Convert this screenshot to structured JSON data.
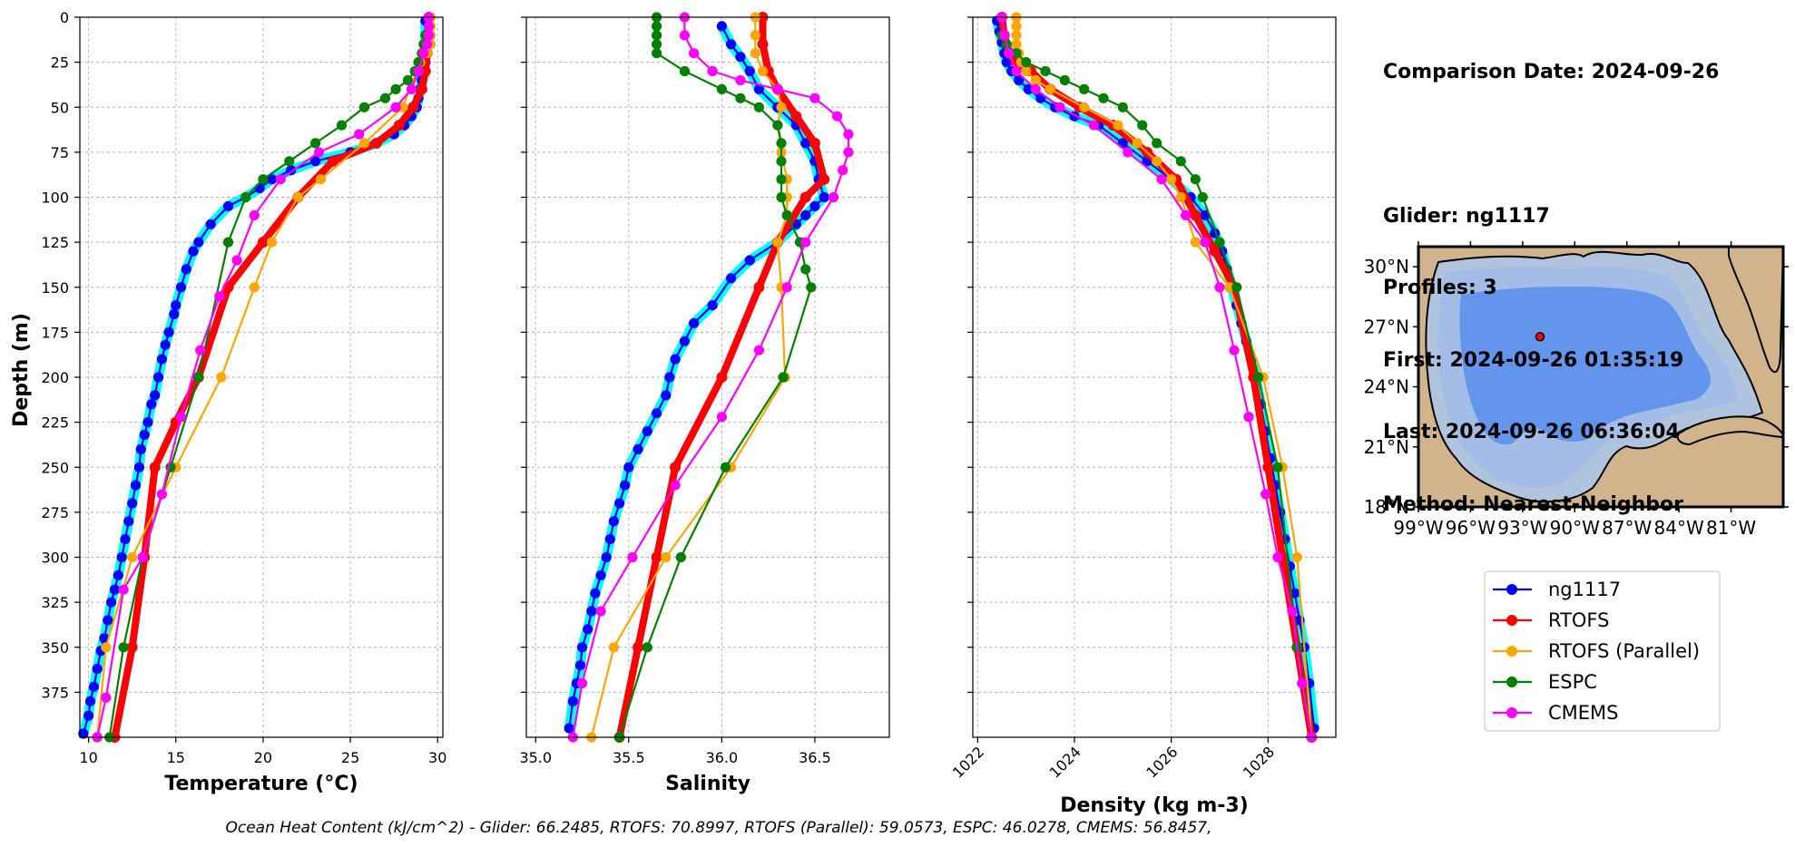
{
  "info": {
    "comparison": "Comparison Date: 2024-09-26",
    "glider": "Glider: ng1117",
    "profiles": "Profiles: 3",
    "first": "First: 2024-09-26 01:35:19",
    "last": "Last: 2024-09-26 06:36:04",
    "method": "Method: Nearest-Neighbor"
  },
  "footer": "Ocean Heat Content (kJ/cm^2) - Glider: 66.2485,  RTOFS: 70.8997,  RTOFS (Parallel): 59.0573,  ESPC: 46.0278,  CMEMS: 56.8457,",
  "legend": [
    "ng1117",
    "RTOFS",
    "RTOFS (Parallel)",
    "ESPC",
    "CMEMS"
  ],
  "colors": {
    "ng1117": "#0000ff",
    "glider_halo": "#00ffff",
    "RTOFS": "#ff0000",
    "RTOFS (Parallel)": "#ffa500",
    "ESPC": "#008000",
    "CMEMS": "#ff00ff",
    "land": "#d2b48c",
    "shelf": "#b0c4de",
    "slope": "#a3bde6",
    "deep": "#6495ed"
  },
  "chart_data": [
    {
      "type": "line",
      "xlabel": "Temperature (°C)",
      "ylabel": "Depth (m)",
      "xlim": [
        9.5,
        30.3
      ],
      "ylim": [
        400,
        0
      ],
      "grid": true,
      "xticks": [
        10,
        15,
        20,
        25,
        30
      ],
      "yticks": [
        0,
        25,
        50,
        75,
        100,
        125,
        150,
        175,
        200,
        225,
        250,
        275,
        300,
        325,
        350,
        375
      ],
      "series": [
        {
          "name": "ng1117",
          "x": [
            29.3,
            29.3,
            29.3,
            29.3,
            29.2,
            29.1,
            29.0,
            28.9,
            28.8,
            28.5,
            28.1,
            27.5,
            26.5,
            25.0,
            23.0,
            21.6,
            20.5,
            19.8,
            19.0,
            18.0,
            17.0,
            16.3,
            16.0,
            15.6,
            15.3,
            15.0,
            14.9,
            14.6,
            14.4,
            14.2,
            14.0,
            13.8,
            13.6,
            13.4,
            13.2,
            13.0,
            12.9,
            12.7,
            12.5,
            12.3,
            12.1,
            11.9,
            11.7,
            11.5,
            11.3,
            11.1,
            10.9,
            10.7,
            10.5,
            10.3,
            10.1,
            10.0,
            9.7
          ],
          "y": [
            2,
            10,
            18,
            25,
            30,
            35,
            40,
            45,
            50,
            55,
            60,
            65,
            70,
            75,
            80,
            85,
            90,
            95,
            100,
            105,
            115,
            125,
            130,
            140,
            150,
            160,
            165,
            175,
            182,
            190,
            200,
            210,
            215,
            225,
            232,
            240,
            250,
            260,
            270,
            280,
            290,
            300,
            310,
            318,
            325,
            335,
            345,
            352,
            362,
            372,
            380,
            388,
            398
          ]
        },
        {
          "name": "RTOFS",
          "x": [
            29.5,
            29.5,
            29.4,
            29.3,
            29.1,
            28.6,
            27.8,
            26.5,
            24.0,
            22.0,
            20.0,
            18.0,
            16.3,
            15.0,
            13.8,
            13.2,
            12.5,
            11.5
          ],
          "y": [
            0,
            10,
            20,
            30,
            40,
            50,
            60,
            70,
            80,
            100,
            125,
            150,
            200,
            225,
            250,
            300,
            350,
            400
          ]
        },
        {
          "name": "RTOFS (Parallel)",
          "x": [
            29.6,
            29.6,
            29.6,
            29.6,
            29.4,
            29.0,
            28.0,
            25.8,
            23.3,
            22.0,
            20.5,
            19.5,
            17.6,
            15.0,
            12.5,
            11.0,
            10.5
          ],
          "y": [
            0,
            5,
            10,
            15,
            20,
            25,
            50,
            70,
            90,
            100,
            125,
            150,
            200,
            250,
            300,
            350,
            400
          ]
        },
        {
          "name": "ESPC",
          "x": [
            29.3,
            29.2,
            29.1,
            28.9,
            28.7,
            28.3,
            27.6,
            27.0,
            25.8,
            24.5,
            23.0,
            21.5,
            20.0,
            19.0,
            18.0,
            16.3,
            14.7,
            13.1,
            12.0,
            11.2
          ],
          "y": [
            10,
            15,
            20,
            25,
            30,
            35,
            40,
            45,
            50,
            60,
            70,
            80,
            90,
            100,
            125,
            200,
            250,
            300,
            350,
            400
          ]
        },
        {
          "name": "CMEMS",
          "x": [
            29.5,
            29.5,
            29.5,
            29.4,
            29.2,
            28.9,
            28.5,
            27.6,
            25.5,
            23.2,
            21.0,
            19.5,
            18.5,
            17.5,
            16.4,
            15.3,
            14.2,
            13.1,
            12.0,
            11.0,
            10.5
          ],
          "y": [
            0,
            5,
            10,
            15,
            20,
            30,
            40,
            50,
            65,
            75,
            90,
            110,
            135,
            155,
            185,
            222,
            265,
            300,
            318,
            378,
            400
          ]
        }
      ]
    },
    {
      "type": "line",
      "xlabel": "Salinity",
      "ylabel": "",
      "xlim": [
        34.95,
        36.9
      ],
      "ylim": [
        400,
        0
      ],
      "grid": true,
      "xticks": [
        35.0,
        35.5,
        36.0,
        36.5
      ],
      "series": [
        {
          "name": "ng1117",
          "x": [
            36.0,
            36.05,
            36.1,
            36.15,
            36.2,
            36.3,
            36.4,
            36.45,
            36.5,
            36.52,
            36.55,
            36.5,
            36.45,
            36.4,
            36.3,
            36.15,
            36.05,
            35.95,
            35.85,
            35.8,
            35.75,
            35.72,
            35.7,
            35.65,
            35.6,
            35.55,
            35.5,
            35.48,
            35.45,
            35.42,
            35.4,
            35.38,
            35.35,
            35.32,
            35.3,
            35.28,
            35.25,
            35.24,
            35.22,
            35.2,
            35.18
          ],
          "y": [
            5,
            15,
            22,
            30,
            40,
            50,
            60,
            70,
            80,
            90,
            100,
            105,
            110,
            115,
            125,
            135,
            145,
            160,
            170,
            180,
            190,
            200,
            210,
            220,
            230,
            240,
            250,
            260,
            270,
            280,
            290,
            300,
            310,
            320,
            330,
            340,
            350,
            360,
            370,
            380,
            395
          ]
        },
        {
          "name": "RTOFS",
          "x": [
            36.22,
            36.22,
            36.25,
            36.3,
            36.4,
            36.5,
            36.55,
            36.45,
            36.3,
            36.2,
            36.0,
            35.75,
            35.65,
            35.55,
            35.45
          ],
          "y": [
            0,
            15,
            30,
            40,
            55,
            70,
            90,
            100,
            125,
            150,
            200,
            250,
            300,
            350,
            400
          ]
        },
        {
          "name": "RTOFS (Parallel)",
          "x": [
            36.18,
            36.18,
            36.18,
            36.22,
            36.3,
            36.32,
            36.3,
            36.32,
            36.35,
            36.35,
            36.35,
            36.3,
            36.32,
            36.34,
            36.05,
            35.7,
            35.42,
            35.3
          ],
          "y": [
            0,
            10,
            20,
            30,
            40,
            50,
            60,
            75,
            90,
            100,
            110,
            125,
            150,
            200,
            250,
            300,
            350,
            400
          ]
        },
        {
          "name": "ESPC",
          "x": [
            35.65,
            35.65,
            35.65,
            35.65,
            35.65,
            35.8,
            36.0,
            36.1,
            36.2,
            36.3,
            36.32,
            36.32,
            36.32,
            36.32,
            36.35,
            36.42,
            36.45,
            36.48,
            36.33,
            36.02,
            35.78,
            35.6,
            35.45
          ],
          "y": [
            0,
            5,
            10,
            15,
            20,
            30,
            40,
            45,
            50,
            60,
            70,
            80,
            90,
            100,
            110,
            125,
            140,
            150,
            200,
            250,
            300,
            350,
            400
          ]
        },
        {
          "name": "CMEMS",
          "x": [
            35.8,
            35.8,
            35.85,
            35.95,
            36.1,
            36.3,
            36.5,
            36.62,
            36.68,
            36.68,
            36.65,
            36.6,
            36.45,
            36.35,
            36.2,
            36.0,
            35.75,
            35.52,
            35.35,
            35.25,
            35.2
          ],
          "y": [
            0,
            10,
            20,
            30,
            35,
            40,
            45,
            55,
            65,
            75,
            85,
            100,
            125,
            150,
            185,
            222,
            260,
            300,
            330,
            370,
            400
          ]
        }
      ]
    },
    {
      "type": "line",
      "xlabel": "Density (kg m-3)",
      "ylabel": "",
      "xlim": [
        1021.9,
        1029.4
      ],
      "ylim": [
        400,
        0
      ],
      "grid": true,
      "xticks": [
        1022,
        1024,
        1026,
        1028
      ],
      "series": [
        {
          "name": "ng1117",
          "x": [
            1022.4,
            1022.45,
            1022.5,
            1022.55,
            1022.6,
            1022.7,
            1022.85,
            1023.05,
            1023.3,
            1023.6,
            1024.0,
            1024.5,
            1025.0,
            1025.5,
            1026.0,
            1026.4,
            1026.7,
            1026.9,
            1027.05,
            1027.15,
            1027.25,
            1027.35,
            1027.45,
            1027.55,
            1027.65,
            1027.75,
            1027.85,
            1027.95,
            1028.05,
            1028.15,
            1028.25,
            1028.35,
            1028.45,
            1028.55,
            1028.65,
            1028.75,
            1028.85,
            1028.95
          ],
          "y": [
            2,
            8,
            14,
            20,
            25,
            30,
            35,
            40,
            45,
            50,
            55,
            60,
            70,
            80,
            90,
            100,
            110,
            120,
            130,
            140,
            150,
            160,
            170,
            180,
            190,
            200,
            215,
            230,
            245,
            260,
            275,
            290,
            305,
            320,
            335,
            350,
            370,
            395
          ]
        },
        {
          "name": "RTOFS",
          "x": [
            1022.5,
            1022.55,
            1022.65,
            1022.8,
            1023.1,
            1023.5,
            1024.1,
            1024.8,
            1025.5,
            1026.1,
            1026.5,
            1026.9,
            1027.3,
            1027.7,
            1028.0,
            1028.3,
            1028.6,
            1028.9
          ],
          "y": [
            0,
            10,
            20,
            25,
            30,
            40,
            50,
            60,
            75,
            90,
            110,
            130,
            150,
            200,
            250,
            300,
            350,
            400
          ]
        },
        {
          "name": "RTOFS (Parallel)",
          "x": [
            1022.8,
            1022.8,
            1022.8,
            1022.8,
            1022.85,
            1022.9,
            1023.0,
            1023.2,
            1023.5,
            1024.2,
            1024.9,
            1025.3,
            1025.7,
            1026.0,
            1026.2,
            1026.5,
            1027.2,
            1027.9,
            1028.3,
            1028.6,
            1028.9
          ],
          "y": [
            0,
            5,
            10,
            15,
            20,
            25,
            30,
            35,
            40,
            50,
            60,
            70,
            80,
            90,
            100,
            125,
            150,
            200,
            250,
            300,
            400
          ]
        },
        {
          "name": "ESPC",
          "x": [
            1022.5,
            1022.6,
            1022.8,
            1023.0,
            1023.4,
            1023.8,
            1024.2,
            1024.6,
            1025.0,
            1025.4,
            1025.7,
            1026.2,
            1026.5,
            1026.65,
            1027.0,
            1027.35,
            1027.8,
            1028.2,
            1028.6,
            1028.9
          ],
          "y": [
            10,
            15,
            20,
            25,
            30,
            35,
            40,
            45,
            50,
            60,
            70,
            80,
            90,
            100,
            125,
            150,
            200,
            250,
            350,
            400
          ]
        },
        {
          "name": "CMEMS",
          "x": [
            1022.5,
            1022.55,
            1022.65,
            1022.8,
            1023.2,
            1023.7,
            1024.4,
            1025.1,
            1025.8,
            1026.3,
            1026.7,
            1027.0,
            1027.3,
            1027.6,
            1027.95,
            1028.2,
            1028.5,
            1028.7,
            1028.9
          ],
          "y": [
            0,
            10,
            20,
            30,
            40,
            50,
            60,
            75,
            90,
            110,
            125,
            150,
            185,
            222,
            265,
            300,
            330,
            370,
            400
          ]
        }
      ]
    }
  ],
  "map": {
    "lon_ticks": [
      "99°W",
      "96°W",
      "93°W",
      "90°W",
      "87°W",
      "84°W",
      "81°W"
    ],
    "lat_ticks": [
      "30°N",
      "27°N",
      "24°N",
      "21°N",
      "18°N"
    ],
    "glider_position": {
      "lon": -92.0,
      "lat": 26.5
    }
  }
}
